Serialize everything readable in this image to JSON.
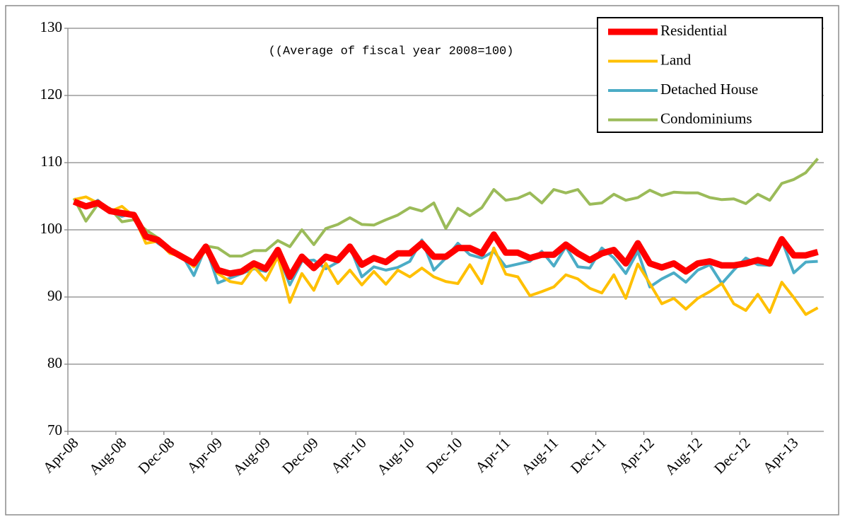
{
  "chart_data": {
    "type": "line",
    "annotation": "((Average of fiscal year 2008=100)",
    "categories": [
      "Apr-08",
      null,
      null,
      null,
      "Aug-08",
      null,
      null,
      null,
      "Dec-08",
      null,
      null,
      null,
      "Apr-09",
      null,
      null,
      null,
      "Aug-09",
      null,
      null,
      null,
      "Dec-09",
      null,
      null,
      null,
      "Apr-10",
      null,
      null,
      null,
      "Aug-10",
      null,
      null,
      null,
      "Dec-10",
      null,
      null,
      null,
      "Apr-11",
      null,
      null,
      null,
      "Aug-11",
      null,
      null,
      null,
      "Dec-11",
      null,
      null,
      null,
      "Apr-12",
      null,
      null,
      null,
      "Aug-12",
      null,
      null,
      null,
      "Dec-12",
      null,
      null,
      null,
      "Apr-13",
      null,
      null
    ],
    "series": [
      {
        "name": "Residential",
        "color": "#ff0000",
        "values": [
          104.2,
          103.5,
          104,
          102.8,
          102.5,
          102.2,
          99,
          98.5,
          97,
          96,
          95,
          97.5,
          94,
          93.5,
          93.8,
          95,
          94.2,
          97,
          93,
          96,
          94.3,
          96,
          95.5,
          97.5,
          94.8,
          95.8,
          95.2,
          96.5,
          96.5,
          98,
          96,
          96,
          97.3,
          97.3,
          96.5,
          99.3,
          96.6,
          96.6,
          95.8,
          96.3,
          96.3,
          97.8,
          96.5,
          95.5,
          96.5,
          97,
          95,
          98,
          95,
          94.4,
          95,
          93.8,
          95,
          95.3,
          94.7,
          94.7,
          95,
          95.5,
          95,
          98.6,
          96.2,
          96.2,
          96.7
        ]
      },
      {
        "name": "Land",
        "color": "#ffc000",
        "values": [
          104.5,
          104.9,
          104,
          102.7,
          103.5,
          102,
          98,
          98.3,
          96.5,
          96,
          94.5,
          97,
          93.5,
          92.3,
          92,
          94.5,
          92.5,
          96,
          89.2,
          93.5,
          91,
          95,
          92,
          94,
          91.8,
          93.8,
          91.9,
          94,
          93,
          94.3,
          93,
          92.3,
          92,
          94.8,
          92,
          97.3,
          93.4,
          93,
          90.2,
          90.8,
          91.5,
          93.3,
          92.7,
          91.3,
          90.6,
          93.3,
          89.8,
          94.9,
          92,
          89,
          89.8,
          88.2,
          89.8,
          90.8,
          92,
          89,
          88,
          90.4,
          87.7,
          92.2,
          89.9,
          87.4,
          88.4
        ]
      },
      {
        "name": "Detached House",
        "color": "#4bacc6",
        "values": [
          104,
          103.3,
          104.4,
          102.8,
          102,
          102.5,
          99.5,
          98,
          96.8,
          96.3,
          93.2,
          97.5,
          92.1,
          92.8,
          93.5,
          94.2,
          93.8,
          96.5,
          91.8,
          95.3,
          95.5,
          94.2,
          95.2,
          97.5,
          93,
          94.5,
          94,
          94.4,
          95.3,
          98.5,
          94,
          95.8,
          98,
          96.3,
          95.8,
          96.8,
          94.5,
          94.9,
          95.3,
          96.8,
          94.6,
          97.5,
          94.5,
          94.3,
          97.3,
          95.8,
          93.5,
          96.8,
          91.5,
          92.7,
          93.6,
          92.2,
          94,
          94.8,
          92,
          94,
          95.8,
          94.8,
          94.7,
          98.5,
          93.6,
          95.2,
          95.3
        ]
      },
      {
        "name": "Condominiums",
        "color": "#9bbb59",
        "values": [
          104.7,
          101.3,
          103.8,
          103.2,
          101.2,
          101.5,
          100,
          98.8,
          97,
          96.3,
          95.3,
          97.6,
          97.3,
          96.1,
          96.1,
          96.9,
          96.9,
          98.4,
          97.5,
          100,
          97.8,
          100.2,
          100.8,
          101.8,
          100.8,
          100.7,
          101.5,
          102.2,
          103.3,
          102.8,
          104,
          100.2,
          103.2,
          102.1,
          103.3,
          106,
          104.4,
          104.7,
          105.5,
          104,
          106,
          105.5,
          106,
          103.8,
          104,
          105.3,
          104.4,
          104.8,
          105.9,
          105.1,
          105.6,
          105.5,
          105.5,
          104.8,
          104.5,
          104.6,
          103.9,
          105.3,
          104.4,
          106.9,
          107.5,
          108.5,
          110.6
        ]
      }
    ],
    "ylim": [
      70,
      130
    ],
    "yticks": [
      70,
      80,
      90,
      100,
      110,
      120,
      130
    ],
    "grid": true,
    "legend": "top-right"
  }
}
